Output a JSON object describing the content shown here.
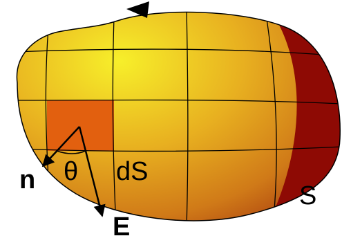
{
  "labels": {
    "normal": "n",
    "angle": "θ",
    "element": "dS",
    "surface": "S",
    "field": "E"
  }
}
